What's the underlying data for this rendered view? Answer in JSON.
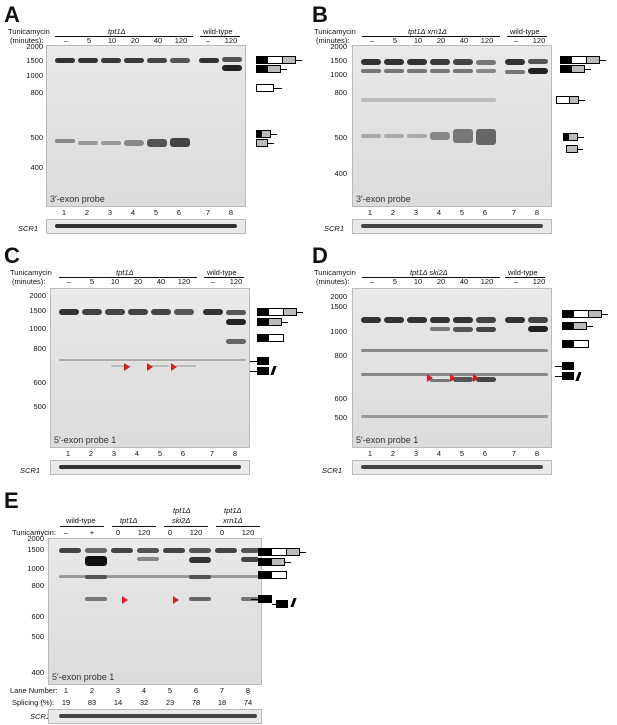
{
  "panels": [
    {
      "letter": "A",
      "tunicamycin_label": "Tunicamycin",
      "minutes_label": "(minutes):",
      "group_main": "tpt1Δ",
      "group_wt": "wild-type",
      "times": [
        "–",
        "5",
        "10",
        "20",
        "40",
        "120",
        "–",
        "120"
      ],
      "lanes": [
        "1",
        "2",
        "3",
        "4",
        "5",
        "6",
        "7",
        "8"
      ],
      "markers": [
        "2000",
        "1500",
        "1000",
        "800",
        "500",
        "400"
      ],
      "probe": "3′-exon probe",
      "loading": "SCR1"
    },
    {
      "letter": "B",
      "tunicamycin_label": "Tunicamycin",
      "minutes_label": "(minutes):",
      "group_main": "tpt1Δ xrn1Δ",
      "group_wt": "wild-type",
      "times": [
        "–",
        "5",
        "10",
        "20",
        "40",
        "120",
        "–",
        "120"
      ],
      "lanes": [
        "1",
        "2",
        "3",
        "4",
        "5",
        "6",
        "7",
        "8"
      ],
      "markers": [
        "2000",
        "1500",
        "1000",
        "800",
        "500",
        "400"
      ],
      "probe": "3′-exon probe",
      "loading": "SCR1"
    },
    {
      "letter": "C",
      "tunicamycin_label": "Tunicamycin",
      "minutes_label": "(minutes):",
      "group_main": "tpt1Δ",
      "group_wt": "wild-type",
      "times": [
        "–",
        "5",
        "10",
        "20",
        "40",
        "120",
        "–",
        "120"
      ],
      "lanes": [
        "1",
        "2",
        "3",
        "4",
        "5",
        "6",
        "7",
        "8"
      ],
      "markers": [
        "2000",
        "1500",
        "1000",
        "800",
        "600",
        "500"
      ],
      "probe": "5′-exon probe 1",
      "loading": "SCR1"
    },
    {
      "letter": "D",
      "tunicamycin_label": "Tunicamycin",
      "minutes_label": "(minutes):",
      "group_main": "tpt1Δ ski2Δ",
      "group_wt": "wild-type",
      "times": [
        "–",
        "5",
        "10",
        "20",
        "40",
        "120",
        "–",
        "120"
      ],
      "lanes": [
        "1",
        "2",
        "3",
        "4",
        "5",
        "6",
        "7",
        "8"
      ],
      "markers": [
        "2000",
        "1500",
        "1000",
        "800",
        "600",
        "500"
      ],
      "probe": "5′-exon probe 1",
      "loading": "SCR1"
    }
  ],
  "panel_e": {
    "letter": "E",
    "tunicamycin_label": "Tunicamycin:",
    "groups": [
      "wild-type",
      "tpt1Δ",
      "tpt1Δ",
      "ski2Δ",
      "tpt1Δ",
      "xrn1Δ"
    ],
    "treatments": [
      "–",
      "+",
      "0",
      "120",
      "0",
      "120",
      "0",
      "120"
    ],
    "markers": [
      "2000",
      "1500",
      "1000",
      "800",
      "600",
      "500",
      "400"
    ],
    "probe": "5′-exon probe 1",
    "lane_number_label": "Lane Number:",
    "lanes": [
      "1",
      "2",
      "3",
      "4",
      "5",
      "6",
      "7",
      "8"
    ],
    "splicing_label": "Splicing (%):",
    "splicing": [
      "19",
      "83",
      "14",
      "32",
      "23",
      "78",
      "18",
      "74"
    ],
    "loading": "SCR1"
  },
  "colors": {
    "arrow": "#d42020",
    "intron": "#bbbbbb",
    "exon": "#000000"
  }
}
